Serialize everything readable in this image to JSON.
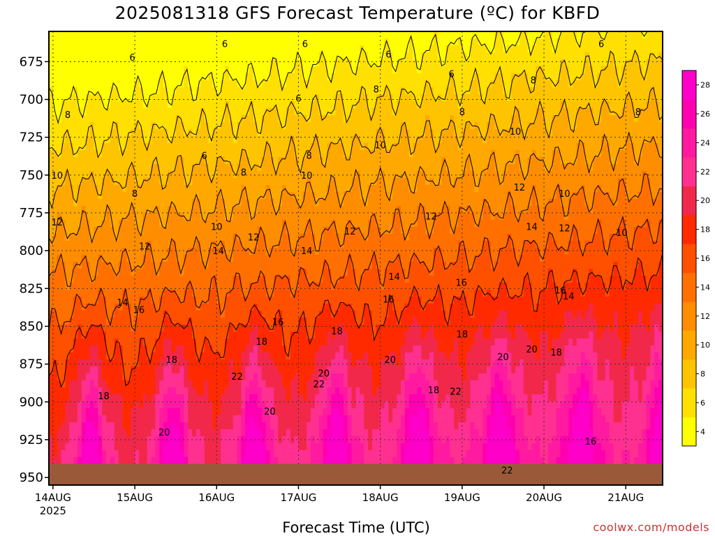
{
  "title": "2025081318 GFS Forecast Temperature (ºC) for KBFD",
  "credit": "coolwx.com/models",
  "chart_data": {
    "type": "heatmap",
    "title": "2025081318 GFS Forecast Temperature (ºC) for KBFD",
    "xlabel": "Forecast Time (UTC)",
    "ylabel": "",
    "x_ticks": [
      "14AUG",
      "15AUG",
      "16AUG",
      "17AUG",
      "18AUG",
      "19AUG",
      "20AUG",
      "21AUG"
    ],
    "x_year_label": "2025",
    "x_range_days": [
      -0.05,
      7.45
    ],
    "y_ticks": [
      675,
      700,
      725,
      750,
      775,
      800,
      825,
      850,
      875,
      900,
      925,
      950
    ],
    "y_range_mb": [
      655,
      955
    ],
    "ground_level_mb": 941,
    "grid": true,
    "colorbar_levels": [
      4,
      6,
      8,
      10,
      12,
      14,
      16,
      18,
      20,
      22,
      24,
      26,
      28
    ],
    "colorbar_colors": [
      "#ffff00",
      "#ffe000",
      "#ffc400",
      "#ffa800",
      "#ff8d00",
      "#ff7000",
      "#ff5000",
      "#ff2a00",
      "#f2284a",
      "#ff3090",
      "#ff1aa0",
      "#ff00b0",
      "#ff00c8"
    ],
    "ground_color": "#9a5a3a",
    "contour_labels": [
      {
        "text": "6",
        "t": 0.97,
        "p": 672
      },
      {
        "text": "6",
        "t": 2.1,
        "p": 663
      },
      {
        "text": "6",
        "t": 3.08,
        "p": 663
      },
      {
        "text": "6",
        "t": 4.1,
        "p": 670
      },
      {
        "text": "6",
        "t": 4.87,
        "p": 683
      },
      {
        "text": "6",
        "t": 6.7,
        "p": 663
      },
      {
        "text": "6",
        "t": 1.85,
        "p": 737
      },
      {
        "text": "6",
        "t": 3.0,
        "p": 699
      },
      {
        "text": "8",
        "t": 0.18,
        "p": 710
      },
      {
        "text": "8",
        "t": 1.0,
        "p": 762
      },
      {
        "text": "8",
        "t": 2.33,
        "p": 748
      },
      {
        "text": "8",
        "t": 3.13,
        "p": 737
      },
      {
        "text": "8",
        "t": 3.95,
        "p": 693
      },
      {
        "text": "8",
        "t": 5.0,
        "p": 708
      },
      {
        "text": "8",
        "t": 5.87,
        "p": 687
      },
      {
        "text": "8",
        "t": 7.15,
        "p": 708
      },
      {
        "text": "10",
        "t": 0.05,
        "p": 750
      },
      {
        "text": "10",
        "t": 2.0,
        "p": 784
      },
      {
        "text": "10",
        "t": 3.1,
        "p": 750
      },
      {
        "text": "10",
        "t": 4.0,
        "p": 730
      },
      {
        "text": "10",
        "t": 5.65,
        "p": 721
      },
      {
        "text": "10",
        "t": 6.25,
        "p": 762
      },
      {
        "text": "10",
        "t": 6.95,
        "p": 788
      },
      {
        "text": "12",
        "t": 0.05,
        "p": 781
      },
      {
        "text": "12",
        "t": 1.12,
        "p": 797
      },
      {
        "text": "12",
        "t": 2.45,
        "p": 791
      },
      {
        "text": "12",
        "t": 3.63,
        "p": 787
      },
      {
        "text": "12",
        "t": 4.62,
        "p": 777
      },
      {
        "text": "12",
        "t": 5.7,
        "p": 758
      },
      {
        "text": "12",
        "t": 6.25,
        "p": 785
      },
      {
        "text": "14",
        "t": 0.85,
        "p": 834
      },
      {
        "text": "14",
        "t": 2.02,
        "p": 800
      },
      {
        "text": "14",
        "t": 3.1,
        "p": 800
      },
      {
        "text": "14",
        "t": 4.17,
        "p": 817
      },
      {
        "text": "14",
        "t": 5.85,
        "p": 784
      },
      {
        "text": "14",
        "t": 6.3,
        "p": 830
      },
      {
        "text": "16",
        "t": 1.05,
        "p": 839
      },
      {
        "text": "16",
        "t": 2.75,
        "p": 847
      },
      {
        "text": "16",
        "t": 4.1,
        "p": 832
      },
      {
        "text": "16",
        "t": 4.99,
        "p": 821
      },
      {
        "text": "16",
        "t": 6.2,
        "p": 826
      },
      {
        "text": "16",
        "t": 6.57,
        "p": 926
      },
      {
        "text": "18",
        "t": 0.62,
        "p": 896
      },
      {
        "text": "18",
        "t": 1.45,
        "p": 872
      },
      {
        "text": "18",
        "t": 2.55,
        "p": 860
      },
      {
        "text": "18",
        "t": 3.47,
        "p": 853
      },
      {
        "text": "18",
        "t": 4.65,
        "p": 892
      },
      {
        "text": "18",
        "t": 5.0,
        "p": 855
      },
      {
        "text": "18",
        "t": 6.15,
        "p": 867
      },
      {
        "text": "20",
        "t": 1.36,
        "p": 920
      },
      {
        "text": "20",
        "t": 2.65,
        "p": 906
      },
      {
        "text": "20",
        "t": 3.31,
        "p": 881
      },
      {
        "text": "20",
        "t": 4.12,
        "p": 872
      },
      {
        "text": "20",
        "t": 5.5,
        "p": 870
      },
      {
        "text": "20",
        "t": 5.85,
        "p": 865
      },
      {
        "text": "22",
        "t": 2.25,
        "p": 883
      },
      {
        "text": "22",
        "t": 3.25,
        "p": 888
      },
      {
        "text": "22",
        "t": 4.92,
        "p": 893
      },
      {
        "text": "22",
        "t": 5.55,
        "p": 945
      }
    ]
  },
  "colorbar": {
    "labels": [
      "4",
      "6",
      "8",
      "10",
      "12",
      "14",
      "16",
      "18",
      "20",
      "22",
      "24",
      "26",
      "28"
    ]
  }
}
